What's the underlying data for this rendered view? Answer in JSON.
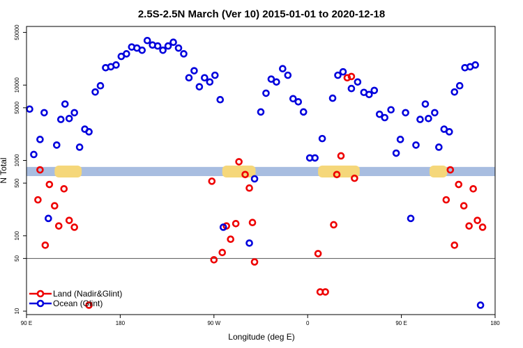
{
  "chart_data": {
    "type": "scatter",
    "title": "2.5S-2.5N March (Ver 10)   2015-01-01 to 2020-12-18",
    "xlabel": "Longitude (deg E)",
    "ylabel": "N Total",
    "y_scale": "log",
    "xlim": [
      90,
      540
    ],
    "ylim": [
      9,
      60000
    ],
    "x_ticks": [
      {
        "value": 90,
        "label": "90 E"
      },
      {
        "value": 180,
        "label": "180"
      },
      {
        "value": 270,
        "label": "90 W"
      },
      {
        "value": 360,
        "label": "0"
      },
      {
        "value": 450,
        "label": "90 E"
      },
      {
        "value": 540,
        "label": "180"
      }
    ],
    "y_ticks": [
      {
        "value": 10,
        "label": "10"
      },
      {
        "value": 50,
        "label": "50"
      },
      {
        "value": 100,
        "label": "100"
      },
      {
        "value": 500,
        "label": "500"
      },
      {
        "value": 1000,
        "label": "1000"
      },
      {
        "value": 5000,
        "label": "5000"
      },
      {
        "value": 10000,
        "label": "10000"
      },
      {
        "value": 50000,
        "label": "50000"
      }
    ],
    "reference_line": {
      "y": 50,
      "color": "#555555"
    },
    "land_band": {
      "y_low": 620,
      "y_high": 820,
      "color": "#a8bde0",
      "land_color": "#f5d77a",
      "land_segments": [
        [
          117,
          143
        ],
        [
          278,
          310
        ],
        [
          370,
          410
        ],
        [
          477,
          494
        ]
      ]
    },
    "legend": [
      {
        "name": "Land (Nadir&Glint)",
        "color": "#ee0000"
      },
      {
        "name": "Ocean (Glint)",
        "color": "#0000dd"
      }
    ],
    "series": [
      {
        "name": "Land (Nadir&Glint)",
        "color": "#ee0000",
        "points": [
          [
            101,
            300
          ],
          [
            103,
            750
          ],
          [
            108,
            75
          ],
          [
            112,
            480
          ],
          [
            117,
            250
          ],
          [
            121,
            135
          ],
          [
            126,
            420
          ],
          [
            131,
            160
          ],
          [
            136,
            130
          ],
          [
            150,
            12
          ],
          [
            268,
            530
          ],
          [
            270,
            48
          ],
          [
            278,
            60
          ],
          [
            282,
            135
          ],
          [
            286,
            90
          ],
          [
            291,
            145
          ],
          [
            294,
            960
          ],
          [
            300,
            650
          ],
          [
            304,
            430
          ],
          [
            307,
            150
          ],
          [
            309,
            45
          ],
          [
            370,
            58
          ],
          [
            372,
            18
          ],
          [
            377,
            18
          ],
          [
            385,
            140
          ],
          [
            388,
            650
          ],
          [
            392,
            1150
          ],
          [
            398,
            12500
          ],
          [
            402,
            13000
          ],
          [
            405,
            580
          ],
          [
            493,
            300
          ],
          [
            497,
            750
          ],
          [
            501,
            75
          ],
          [
            505,
            480
          ],
          [
            510,
            250
          ],
          [
            515,
            135
          ],
          [
            519,
            420
          ],
          [
            523,
            160
          ],
          [
            528,
            130
          ]
        ]
      },
      {
        "name": "Ocean (Glint)",
        "color": "#0000dd",
        "points": [
          [
            93,
            4800
          ],
          [
            97,
            1200
          ],
          [
            103,
            1900
          ],
          [
            107,
            4300
          ],
          [
            111,
            170
          ],
          [
            119,
            1600
          ],
          [
            123,
            3500
          ],
          [
            127,
            5600
          ],
          [
            131,
            3600
          ],
          [
            136,
            4300
          ],
          [
            141,
            1500
          ],
          [
            146,
            2600
          ],
          [
            150,
            2400
          ],
          [
            156,
            8100
          ],
          [
            161,
            9800
          ],
          [
            166,
            17000
          ],
          [
            171,
            17500
          ],
          [
            176,
            18500
          ],
          [
            181,
            24000
          ],
          [
            186,
            26000
          ],
          [
            191,
            32000
          ],
          [
            196,
            31000
          ],
          [
            201,
            29000
          ],
          [
            206,
            39000
          ],
          [
            211,
            34000
          ],
          [
            216,
            33000
          ],
          [
            221,
            29000
          ],
          [
            226,
            33000
          ],
          [
            231,
            37000
          ],
          [
            236,
            31000
          ],
          [
            241,
            26000
          ],
          [
            246,
            12500
          ],
          [
            251,
            15500
          ],
          [
            256,
            9500
          ],
          [
            261,
            12500
          ],
          [
            266,
            11000
          ],
          [
            271,
            13500
          ],
          [
            276,
            6400
          ],
          [
            279,
            130
          ],
          [
            304,
            80
          ],
          [
            309,
            570
          ],
          [
            315,
            4400
          ],
          [
            320,
            7800
          ],
          [
            325,
            12000
          ],
          [
            330,
            11000
          ],
          [
            336,
            16500
          ],
          [
            341,
            13500
          ],
          [
            346,
            6600
          ],
          [
            351,
            6000
          ],
          [
            356,
            4400
          ],
          [
            362,
            1080
          ],
          [
            367,
            1080
          ],
          [
            374,
            1950
          ],
          [
            384,
            6700
          ],
          [
            389,
            13500
          ],
          [
            394,
            15000
          ],
          [
            402,
            9000
          ],
          [
            408,
            11000
          ],
          [
            414,
            8000
          ],
          [
            419,
            7500
          ],
          [
            424,
            8500
          ],
          [
            429,
            4100
          ],
          [
            434,
            3700
          ],
          [
            440,
            4700
          ],
          [
            445,
            1250
          ],
          [
            449,
            1900
          ],
          [
            454,
            4300
          ],
          [
            459,
            170
          ],
          [
            464,
            1600
          ],
          [
            468,
            3500
          ],
          [
            473,
            5600
          ],
          [
            476,
            3600
          ],
          [
            482,
            4300
          ],
          [
            486,
            1500
          ],
          [
            491,
            2600
          ],
          [
            496,
            2400
          ],
          [
            501,
            8100
          ],
          [
            506,
            9800
          ],
          [
            511,
            17000
          ],
          [
            516,
            17500
          ],
          [
            521,
            18500
          ],
          [
            526,
            12
          ]
        ]
      }
    ]
  }
}
